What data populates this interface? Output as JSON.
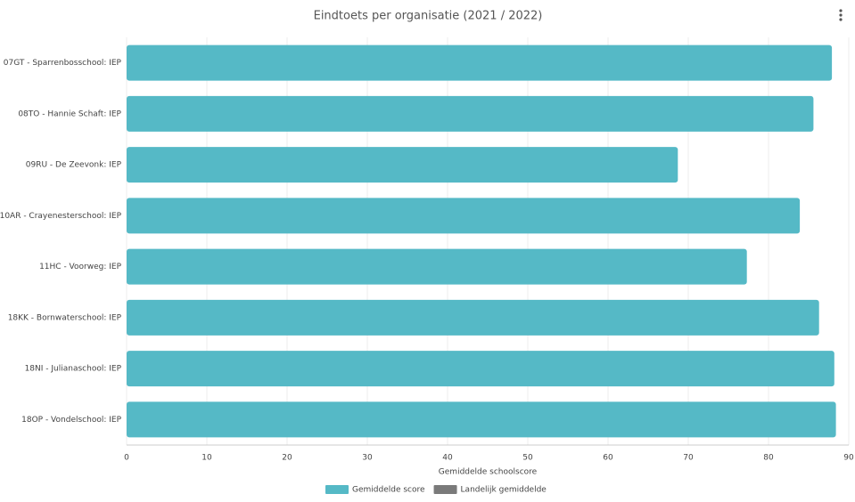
{
  "chart_data": {
    "type": "bar",
    "orientation": "horizontal",
    "title": "Eindtoets per organisatie (2021 / 2022)",
    "x_label": "Gemiddelde schoolscore",
    "categories": [
      "07GT - Sparrenbosschool: IEP",
      "08TO - Hannie Schaft: IEP",
      "09RU - De Zeevonk: IEP",
      "10AR - Crayenesterschool: IEP",
      "11HC - Voorweg: IEP",
      "18KK - Bornwaterschool: IEP",
      "18NI - Julianaschool: IEP",
      "18OP - Vondelschool: IEP"
    ],
    "series": [
      {
        "name": "Gemiddelde score",
        "color": "#55b9c6",
        "values": [
          87.9,
          85.6,
          68.7,
          83.9,
          77.3,
          86.3,
          88.2,
          88.4
        ]
      },
      {
        "name": "Landelijk gemiddelde",
        "color": "#7a7a7a",
        "values": [
          null,
          null,
          null,
          null,
          null,
          null,
          null,
          null
        ]
      }
    ],
    "xlim": [
      0,
      90
    ],
    "xticks": [
      0,
      10,
      20,
      30,
      40,
      50,
      60,
      70,
      80,
      90
    ],
    "grid": true,
    "legend": "bottom"
  }
}
